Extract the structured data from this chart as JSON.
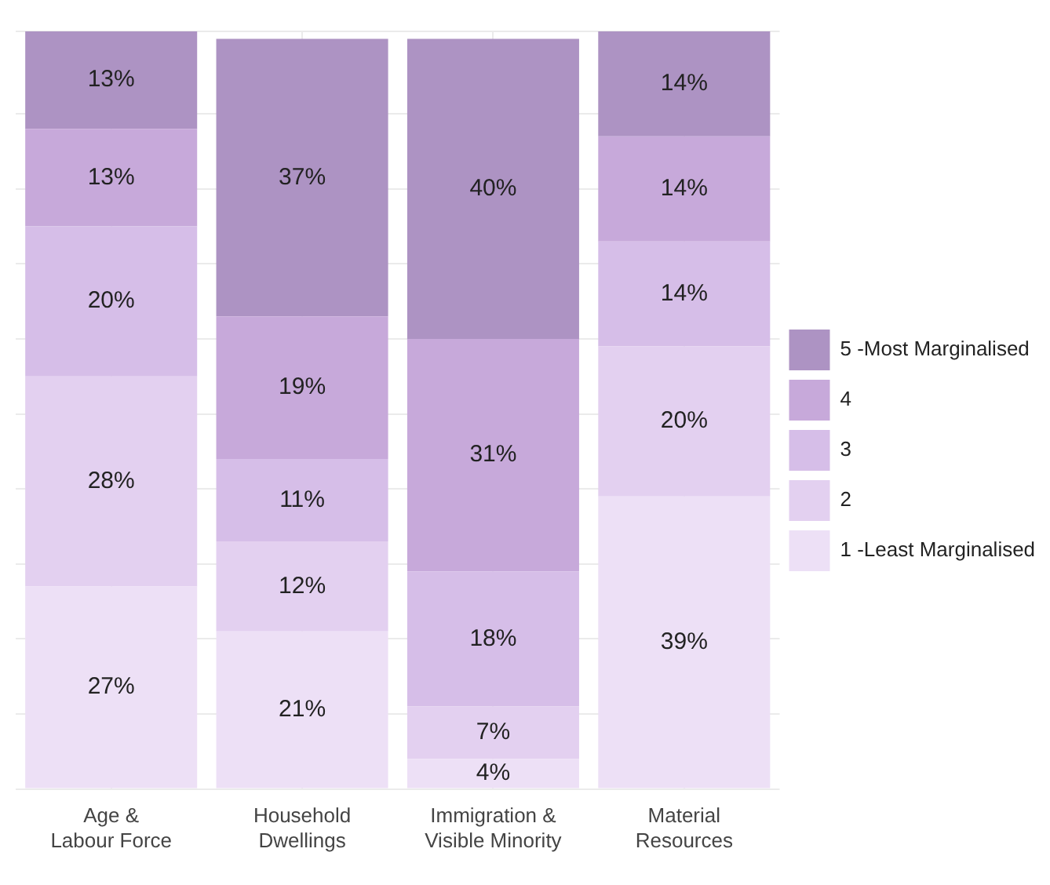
{
  "chart_data": {
    "type": "bar",
    "stacked": true,
    "categories": [
      "Age &\nLabour Force",
      "Household\nDwellings",
      "Immigration &\nVisible Minority",
      "Material\nResources"
    ],
    "series": [
      {
        "name": "1 -Least Marginalised",
        "color": "#ede0f6",
        "values": [
          27,
          21,
          4,
          39
        ],
        "value_labels": [
          "27%",
          "21%",
          "4%",
          "39%"
        ]
      },
      {
        "name": "2",
        "color": "#e3d0f0",
        "values": [
          28,
          12,
          7,
          20
        ],
        "value_labels": [
          "28%",
          "12%",
          "7%",
          "20%"
        ]
      },
      {
        "name": "3",
        "color": "#d6bee8",
        "values": [
          20,
          11,
          18,
          14
        ],
        "value_labels": [
          "20%",
          "11%",
          "18%",
          "14%"
        ]
      },
      {
        "name": "4",
        "color": "#c7a9da",
        "values": [
          13,
          19,
          31,
          14
        ],
        "value_labels": [
          "13%",
          "19%",
          "31%",
          "14%"
        ]
      },
      {
        "name": "5 -Most Marginalised",
        "color": "#ad93c3",
        "values": [
          13,
          37,
          40,
          14
        ],
        "value_labels": [
          "13%",
          "37%",
          "40%",
          "14%"
        ]
      }
    ],
    "grid": true,
    "legend": "right",
    "tick_labels": "x"
  }
}
